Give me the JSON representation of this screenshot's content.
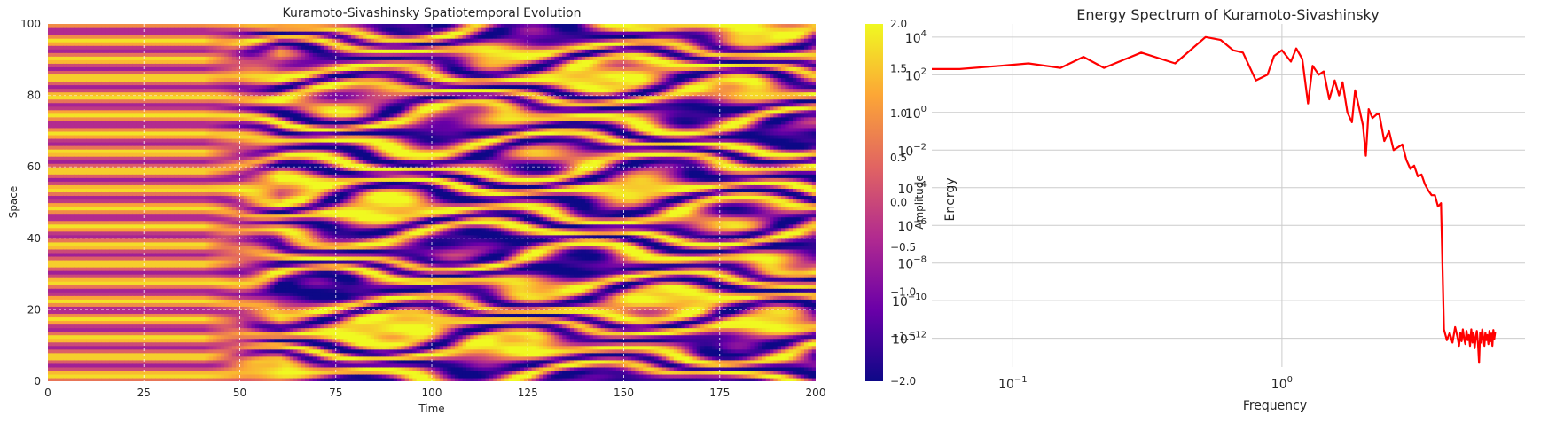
{
  "chart_data": [
    {
      "type": "heatmap",
      "title": "Kuramoto-Sivashinsky Spatiotemporal Evolution",
      "xlabel": "Time",
      "ylabel": "Space",
      "xlim": [
        0,
        200
      ],
      "ylim": [
        0,
        100
      ],
      "xticks": [
        "0",
        "25",
        "50",
        "75",
        "100",
        "125",
        "150",
        "175",
        "200"
      ],
      "yticks": [
        "0",
        "20",
        "40",
        "60",
        "80",
        "100"
      ],
      "colorbar": {
        "label": "Amplitude",
        "range": [
          -2.0,
          2.0
        ],
        "ticks": [
          "2.0",
          "1.5",
          "1.0",
          "0.5",
          "0.0",
          "−0.5",
          "−1.0",
          "−1.5",
          "−2.0"
        ],
        "colormap": [
          "#0d0887",
          "#6a00a8",
          "#b12a90",
          "#e16462",
          "#fca636",
          "#f0f921"
        ]
      },
      "grid": true,
      "contours": true
    },
    {
      "type": "line",
      "title": "Energy Spectrum of Kuramoto-Sivashinsky",
      "xlabel": "Frequency",
      "ylabel": "Energy",
      "xscale": "log",
      "yscale": "log",
      "xlim": [
        0.05,
        8.0
      ],
      "ylim": [
        3e-14,
        50000.0
      ],
      "xticks": [
        {
          "base": "10",
          "exp": "−1"
        },
        {
          "base": "10",
          "exp": "0"
        }
      ],
      "yticks": [
        {
          "base": "10",
          "exp": "4"
        },
        {
          "base": "10",
          "exp": "2"
        },
        {
          "base": "10",
          "exp": "0"
        },
        {
          "base": "10",
          "exp": "−2"
        },
        {
          "base": "10",
          "exp": "−4"
        },
        {
          "base": "10",
          "exp": "−6"
        },
        {
          "base": "10",
          "exp": "−8"
        },
        {
          "base": "10",
          "exp": "−10"
        },
        {
          "base": "10",
          "exp": "−12"
        }
      ],
      "color": "#ff0000",
      "grid": true,
      "x": [
        0.05,
        0.0635,
        0.0903,
        0.1143,
        0.1503,
        0.1829,
        0.2181,
        0.3,
        0.401,
        0.52,
        0.5924,
        0.6586,
        0.7165,
        0.8,
        0.8837,
        0.9351,
        1.0,
        1.08,
        1.13,
        1.19,
        1.25,
        1.3,
        1.37,
        1.43,
        1.5,
        1.57,
        1.63,
        1.68,
        1.75,
        1.82,
        1.87,
        1.93,
        2.0,
        2.05,
        2.1,
        2.17,
        2.25,
        2.3,
        2.4,
        2.5,
        2.6,
        2.8,
        2.9,
        3.0,
        3.1,
        3.2,
        3.3,
        3.4,
        3.5,
        3.6,
        3.7,
        3.8,
        3.9,
        4.0,
        4.1,
        4.2,
        4.3,
        4.4,
        4.5,
        4.55,
        4.6,
        4.65,
        4.7,
        4.75,
        4.8,
        4.85,
        4.9,
        4.95,
        5.0,
        5.05,
        5.1,
        5.15,
        5.2,
        5.25,
        5.3,
        5.35,
        5.4,
        5.45,
        5.5,
        5.55,
        5.6,
        5.65,
        5.7,
        5.75,
        5.8,
        5.85,
        5.9,
        5.95,
        6.0,
        6.05,
        6.1,
        6.15,
        6.2
      ],
      "y": [
        200,
        200,
        300,
        400,
        230,
        900,
        230,
        1500,
        400,
        10000,
        7000,
        2000,
        1500,
        50,
        100,
        1000,
        2000,
        500,
        2500,
        700,
        3,
        300,
        100,
        150,
        5,
        50,
        8,
        40,
        1,
        0.3,
        15,
        2,
        0.2,
        0.005,
        1.5,
        0.5,
        0.8,
        0.8,
        0.03,
        0.1,
        0.01,
        0.02,
        0.003,
        0.001,
        0.0015,
        0.0004,
        0.0005,
        0.00015,
        7e-05,
        4e-05,
        4e-05,
        1e-05,
        1.5e-05,
        3e-12,
        8e-13,
        2e-12,
        6e-13,
        4e-12,
        1e-12,
        4e-13,
        2e-12,
        7e-13,
        3e-12,
        1e-12,
        5e-13,
        2.5e-12,
        8e-13,
        1.5e-12,
        4e-13,
        3e-12,
        6e-13,
        2e-12,
        3e-13,
        1.2e-12,
        2.5e-12,
        5e-13,
        5e-14,
        2e-12,
        6e-13,
        3e-12,
        1e-12,
        4e-13,
        2e-12,
        8e-13,
        1.5e-12,
        5e-13,
        2.5e-12,
        7e-13,
        1.8e-12,
        4e-13,
        2.8e-12,
        9e-13,
        2.2e-12
      ]
    }
  ]
}
